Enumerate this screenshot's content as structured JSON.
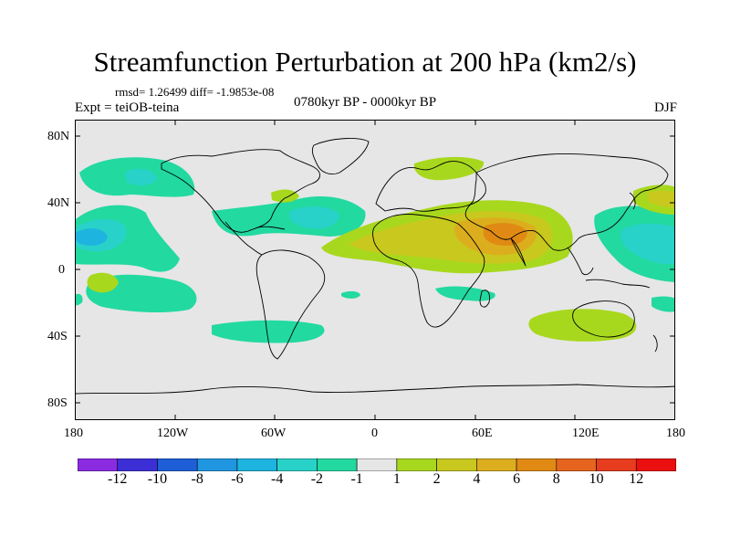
{
  "title": "Streamfunction Perturbation at 200 hPa (km2/s)",
  "stats": "rmsd= 1.26499 diff= -1.9853e-08",
  "experiment": "Expt = teiOB-teina",
  "period": "0780kyr BP - 0000kyr BP",
  "season": "DJF",
  "lat_ticks": [
    "80N",
    "40N",
    "0",
    "40S",
    "80S"
  ],
  "lon_ticks": [
    "180",
    "120W",
    "60W",
    "0",
    "60E",
    "120E",
    "180"
  ],
  "colorbar": {
    "labels": [
      "-12",
      "-10",
      "-8",
      "-6",
      "-4",
      "-2",
      "-1",
      "1",
      "2",
      "4",
      "6",
      "8",
      "10",
      "12"
    ],
    "colors": [
      "#8a2be2",
      "#3d2fd6",
      "#1e5fd8",
      "#2196e0",
      "#1eb4e0",
      "#28d2c8",
      "#22d9a0",
      "#e6e6e6",
      "#a8d81e",
      "#c8c81e",
      "#dcae1e",
      "#e08a14",
      "#e6641e",
      "#e83c1e",
      "#ec0f0f"
    ]
  },
  "colors": {
    "background": "#e6e6e6",
    "coast": "#000000"
  }
}
